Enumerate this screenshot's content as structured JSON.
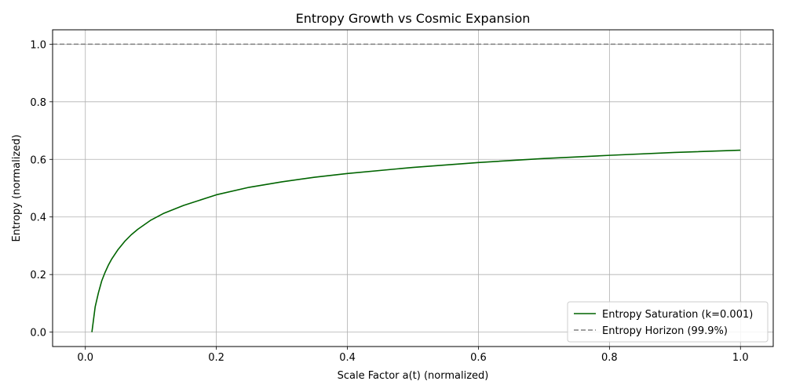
{
  "chart_data": {
    "type": "line",
    "title": "Entropy Growth vs Cosmic Expansion",
    "xlabel": "Scale Factor a(t) (normalized)",
    "ylabel": "Entropy (normalized)",
    "xlim": [
      -0.05,
      1.05
    ],
    "ylim": [
      -0.05,
      1.05
    ],
    "xticks": [
      0.0,
      0.2,
      0.4,
      0.6,
      0.8,
      1.0
    ],
    "yticks": [
      0.0,
      0.2,
      0.4,
      0.6,
      0.8,
      1.0
    ],
    "xtick_labels": [
      "0.0",
      "0.2",
      "0.4",
      "0.6",
      "0.8",
      "1.0"
    ],
    "ytick_labels": [
      "0.0",
      "0.2",
      "0.4",
      "0.6",
      "0.8",
      "1.0"
    ],
    "grid": true,
    "legend_position": "lower-right",
    "series": [
      {
        "name": "Entropy Saturation (k=0.001)",
        "color": "#006400",
        "style": "solid",
        "x": [
          0.01,
          0.015,
          0.02,
          0.025,
          0.03,
          0.035,
          0.04,
          0.05,
          0.06,
          0.07,
          0.08,
          0.1,
          0.12,
          0.15,
          0.2,
          0.25,
          0.3,
          0.35,
          0.4,
          0.5,
          0.6,
          0.7,
          0.8,
          0.9,
          1.0
        ],
        "y": [
          0.0,
          0.088,
          0.137,
          0.178,
          0.207,
          0.232,
          0.253,
          0.287,
          0.315,
          0.338,
          0.357,
          0.389,
          0.413,
          0.44,
          0.477,
          0.503,
          0.522,
          0.538,
          0.551,
          0.572,
          0.589,
          0.603,
          0.614,
          0.624,
          0.632
        ]
      },
      {
        "name": "Entropy Horizon (99.9%)",
        "color": "#808080",
        "style": "dashed",
        "hline": 1.0
      }
    ]
  }
}
